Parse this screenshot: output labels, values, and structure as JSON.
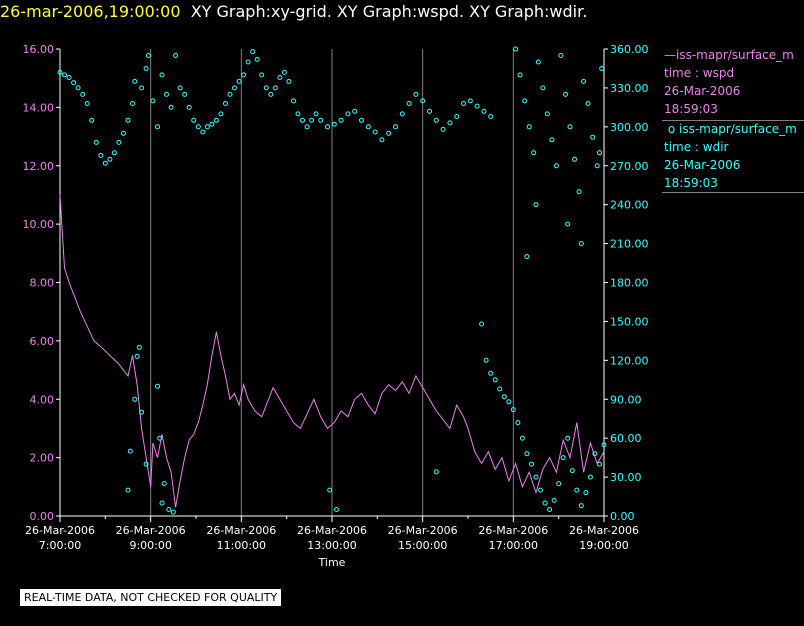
{
  "header": {
    "timestamp": "26-mar-2006,19:00:00",
    "graphs": "XY Graph:xy-grid.  XY Graph:wspd.  XY Graph:wdir."
  },
  "legend": {
    "wspd": {
      "line1": "iss-mapr/surface_m",
      "line2": "time : wspd",
      "line3": "26-Mar-2006",
      "line4": "18:59:03"
    },
    "wdir": {
      "line1": "iss-mapr/surface_m",
      "line2": "time : wdir",
      "line3": "26-Mar-2006",
      "line4": "18:59:03"
    }
  },
  "disclaimer": "REAL-TIME DATA, NOT CHECKED FOR QUALITY",
  "colors": {
    "wspd": "#ee82ee",
    "wdir": "#33ffff",
    "timestamp": "#ffff33",
    "axis": "#ffffff",
    "grid": "#808080"
  },
  "chart_data": {
    "type": "line",
    "xlabel": "Time",
    "x_tick_dates": [
      "26-Mar-2006",
      "26-Mar-2006",
      "26-Mar-2006",
      "26-Mar-2006",
      "26-Mar-2006",
      "26-Mar-2006",
      "26-Mar-2006"
    ],
    "x_tick_times": [
      "7:00:00",
      "9:00:00",
      "11:00:00",
      "13:00:00",
      "15:00:00",
      "17:00:00",
      "19:00:00"
    ],
    "x_tick_hours": [
      7,
      9,
      11,
      13,
      15,
      17,
      19
    ],
    "xlim": [
      7.0,
      19.0
    ],
    "y_left_ticks": [
      "0.00",
      "2.00",
      "4.00",
      "6.00",
      "8.00",
      "10.00",
      "12.00",
      "14.00",
      "16.00"
    ],
    "y_left_lim": [
      0,
      16
    ],
    "y_right_ticks": [
      "0.00",
      "30.00",
      "60.00",
      "90.00",
      "120.00",
      "150.00",
      "180.00",
      "210.00",
      "240.00",
      "270.00",
      "300.00",
      "330.00",
      "360.00"
    ],
    "y_right_lim": [
      0,
      360
    ],
    "series": [
      {
        "name": "wspd",
        "axis": "left",
        "style": "line",
        "points": [
          [
            7.0,
            11.0
          ],
          [
            7.1,
            8.5
          ],
          [
            7.2,
            8.0
          ],
          [
            7.3,
            7.6
          ],
          [
            7.45,
            7.0
          ],
          [
            7.6,
            6.5
          ],
          [
            7.75,
            6.0
          ],
          [
            7.9,
            5.8
          ],
          [
            8.1,
            5.5
          ],
          [
            8.3,
            5.2
          ],
          [
            8.5,
            4.8
          ],
          [
            8.6,
            5.5
          ],
          [
            8.7,
            4.5
          ],
          [
            8.8,
            3.0
          ],
          [
            8.9,
            2.0
          ],
          [
            9.0,
            1.0
          ],
          [
            9.05,
            2.5
          ],
          [
            9.15,
            2.0
          ],
          [
            9.25,
            2.8
          ],
          [
            9.35,
            2.0
          ],
          [
            9.45,
            1.5
          ],
          [
            9.55,
            0.3
          ],
          [
            9.65,
            1.2
          ],
          [
            9.75,
            2.0
          ],
          [
            9.85,
            2.6
          ],
          [
            9.95,
            2.8
          ],
          [
            10.05,
            3.2
          ],
          [
            10.15,
            3.8
          ],
          [
            10.25,
            4.5
          ],
          [
            10.35,
            5.5
          ],
          [
            10.45,
            6.3
          ],
          [
            10.55,
            5.5
          ],
          [
            10.65,
            4.8
          ],
          [
            10.75,
            4.0
          ],
          [
            10.85,
            4.2
          ],
          [
            10.95,
            3.8
          ],
          [
            11.05,
            4.5
          ],
          [
            11.15,
            4.0
          ],
          [
            11.3,
            3.6
          ],
          [
            11.45,
            3.4
          ],
          [
            11.55,
            3.8
          ],
          [
            11.7,
            4.4
          ],
          [
            11.85,
            4.0
          ],
          [
            12.0,
            3.6
          ],
          [
            12.15,
            3.2
          ],
          [
            12.3,
            3.0
          ],
          [
            12.45,
            3.5
          ],
          [
            12.6,
            4.0
          ],
          [
            12.75,
            3.4
          ],
          [
            12.9,
            3.0
          ],
          [
            13.05,
            3.2
          ],
          [
            13.2,
            3.6
          ],
          [
            13.35,
            3.4
          ],
          [
            13.5,
            4.0
          ],
          [
            13.65,
            4.2
          ],
          [
            13.8,
            3.8
          ],
          [
            13.95,
            3.5
          ],
          [
            14.1,
            4.2
          ],
          [
            14.25,
            4.5
          ],
          [
            14.4,
            4.3
          ],
          [
            14.55,
            4.6
          ],
          [
            14.7,
            4.2
          ],
          [
            14.85,
            4.8
          ],
          [
            15.0,
            4.4
          ],
          [
            15.15,
            4.0
          ],
          [
            15.3,
            3.6
          ],
          [
            15.45,
            3.3
          ],
          [
            15.6,
            3.0
          ],
          [
            15.75,
            3.8
          ],
          [
            15.9,
            3.4
          ],
          [
            16.0,
            3.0
          ],
          [
            16.15,
            2.2
          ],
          [
            16.3,
            1.8
          ],
          [
            16.45,
            2.2
          ],
          [
            16.6,
            1.6
          ],
          [
            16.75,
            2.0
          ],
          [
            16.9,
            1.2
          ],
          [
            17.05,
            1.8
          ],
          [
            17.2,
            1.0
          ],
          [
            17.35,
            1.5
          ],
          [
            17.5,
            0.8
          ],
          [
            17.65,
            1.6
          ],
          [
            17.8,
            2.0
          ],
          [
            17.95,
            1.5
          ],
          [
            18.1,
            2.6
          ],
          [
            18.25,
            2.0
          ],
          [
            18.4,
            3.2
          ],
          [
            18.55,
            1.5
          ],
          [
            18.7,
            2.5
          ],
          [
            18.85,
            1.8
          ],
          [
            19.0,
            2.2
          ]
        ]
      },
      {
        "name": "wdir",
        "axis": "right",
        "style": "markers",
        "points": [
          [
            7.0,
            342
          ],
          [
            7.1,
            340
          ],
          [
            7.2,
            338
          ],
          [
            7.3,
            334
          ],
          [
            7.4,
            330
          ],
          [
            7.5,
            325
          ],
          [
            7.6,
            318
          ],
          [
            7.7,
            305
          ],
          [
            7.8,
            288
          ],
          [
            7.9,
            278
          ],
          [
            8.0,
            272
          ],
          [
            8.1,
            275
          ],
          [
            8.2,
            280
          ],
          [
            8.3,
            288
          ],
          [
            8.4,
            295
          ],
          [
            8.5,
            305
          ],
          [
            8.6,
            318
          ],
          [
            8.65,
            335
          ],
          [
            8.8,
            330
          ],
          [
            8.9,
            345
          ],
          [
            8.95,
            355
          ],
          [
            9.05,
            320
          ],
          [
            9.15,
            300
          ],
          [
            9.25,
            340
          ],
          [
            9.35,
            325
          ],
          [
            9.45,
            315
          ],
          [
            9.55,
            355
          ],
          [
            9.65,
            330
          ],
          [
            9.75,
            325
          ],
          [
            9.85,
            315
          ],
          [
            9.95,
            305
          ],
          [
            10.05,
            300
          ],
          [
            10.15,
            296
          ],
          [
            10.25,
            300
          ],
          [
            10.35,
            302
          ],
          [
            10.45,
            305
          ],
          [
            10.55,
            310
          ],
          [
            10.65,
            318
          ],
          [
            10.75,
            325
          ],
          [
            10.85,
            330
          ],
          [
            10.95,
            335
          ],
          [
            11.05,
            340
          ],
          [
            11.15,
            350
          ],
          [
            11.25,
            358
          ],
          [
            11.35,
            352
          ],
          [
            11.45,
            340
          ],
          [
            11.55,
            330
          ],
          [
            11.65,
            325
          ],
          [
            11.75,
            330
          ],
          [
            11.85,
            338
          ],
          [
            11.95,
            342
          ],
          [
            12.05,
            335
          ],
          [
            12.15,
            320
          ],
          [
            12.25,
            310
          ],
          [
            12.35,
            305
          ],
          [
            12.45,
            300
          ],
          [
            12.55,
            305
          ],
          [
            12.65,
            310
          ],
          [
            12.75,
            305
          ],
          [
            12.9,
            300
          ],
          [
            13.05,
            302
          ],
          [
            13.2,
            305
          ],
          [
            13.35,
            310
          ],
          [
            13.5,
            312
          ],
          [
            13.65,
            305
          ],
          [
            13.8,
            300
          ],
          [
            13.95,
            296
          ],
          [
            14.1,
            290
          ],
          [
            14.25,
            295
          ],
          [
            14.4,
            300
          ],
          [
            14.55,
            310
          ],
          [
            14.7,
            318
          ],
          [
            14.85,
            325
          ],
          [
            15.0,
            320
          ],
          [
            15.15,
            312
          ],
          [
            15.3,
            305
          ],
          [
            15.45,
            298
          ],
          [
            15.6,
            303
          ],
          [
            15.75,
            308
          ],
          [
            15.9,
            318
          ],
          [
            16.05,
            320
          ],
          [
            16.2,
            316
          ],
          [
            16.35,
            312
          ],
          [
            16.5,
            308
          ],
          [
            15.3,
            34
          ],
          [
            9.15,
            100
          ],
          [
            9.2,
            60
          ],
          [
            9.25,
            10
          ],
          [
            9.3,
            25
          ],
          [
            9.4,
            5
          ],
          [
            9.5,
            3
          ],
          [
            8.5,
            20
          ],
          [
            8.55,
            50
          ],
          [
            8.65,
            90
          ],
          [
            8.7,
            123
          ],
          [
            8.75,
            130
          ],
          [
            8.8,
            80
          ],
          [
            8.9,
            40
          ],
          [
            12.95,
            20
          ],
          [
            13.1,
            5
          ],
          [
            16.3,
            148
          ],
          [
            16.4,
            120
          ],
          [
            16.5,
            110
          ],
          [
            16.6,
            105
          ],
          [
            16.7,
            98
          ],
          [
            16.8,
            92
          ],
          [
            16.9,
            88
          ],
          [
            17.0,
            82
          ],
          [
            17.1,
            72
          ],
          [
            17.2,
            60
          ],
          [
            17.3,
            48
          ],
          [
            17.4,
            40
          ],
          [
            17.5,
            30
          ],
          [
            17.6,
            20
          ],
          [
            17.7,
            10
          ],
          [
            17.8,
            5
          ],
          [
            17.9,
            12
          ],
          [
            18.0,
            25
          ],
          [
            18.1,
            45
          ],
          [
            18.2,
            60
          ],
          [
            18.3,
            35
          ],
          [
            18.4,
            20
          ],
          [
            18.5,
            8
          ],
          [
            18.6,
            18
          ],
          [
            18.7,
            30
          ],
          [
            18.8,
            48
          ],
          [
            18.9,
            40
          ],
          [
            19.0,
            55
          ],
          [
            17.05,
            360
          ],
          [
            17.15,
            340
          ],
          [
            17.25,
            320
          ],
          [
            17.35,
            300
          ],
          [
            17.45,
            280
          ],
          [
            17.55,
            350
          ],
          [
            17.65,
            330
          ],
          [
            17.75,
            310
          ],
          [
            17.85,
            290
          ],
          [
            17.95,
            270
          ],
          [
            18.05,
            355
          ],
          [
            18.15,
            325
          ],
          [
            18.25,
            300
          ],
          [
            18.35,
            275
          ],
          [
            18.45,
            250
          ],
          [
            18.55,
            335
          ],
          [
            18.65,
            318
          ],
          [
            18.75,
            292
          ],
          [
            18.85,
            270
          ],
          [
            18.95,
            345
          ],
          [
            17.3,
            200
          ],
          [
            17.5,
            240
          ],
          [
            18.2,
            225
          ],
          [
            18.5,
            210
          ],
          [
            18.9,
            280
          ]
        ]
      }
    ]
  }
}
